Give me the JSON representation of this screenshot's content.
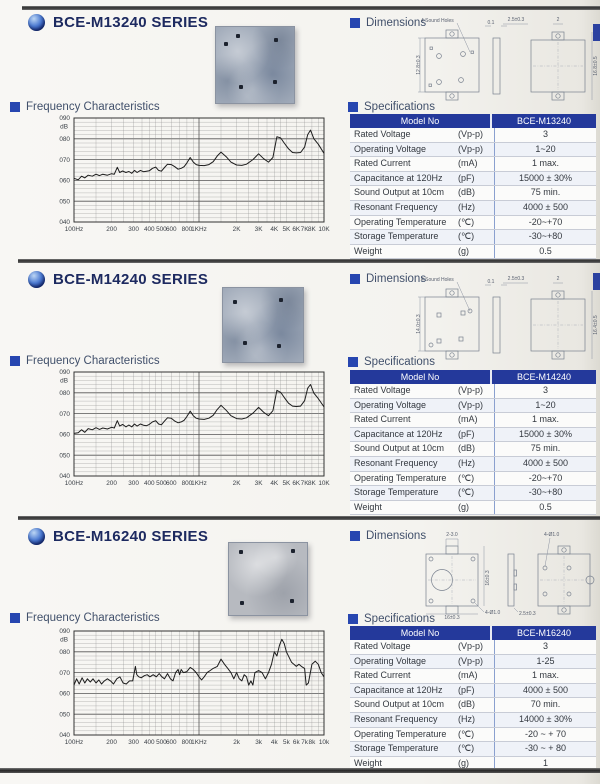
{
  "labels": {
    "dimensions": "Dimensions",
    "frequency": "Frequency Characteristics",
    "specifications": "Specifications"
  },
  "sections": [
    {
      "title": "BCE-M13240 SERIES",
      "dimensions": {
        "annotation": "4 Sound Holes",
        "d1": "0.1",
        "d2": "2.5±0.3",
        "d3": "2",
        "left": "12.8±0.3",
        "right": "16.8±0.5"
      },
      "specs": {
        "header": [
          "Model No",
          "BCE-M13240"
        ],
        "rows": [
          [
            "Rated Voltage",
            "(Vp-p)",
            "3"
          ],
          [
            "Operating Voltage",
            "(Vp-p)",
            "1~20"
          ],
          [
            "Rated Current",
            "(mA)",
            "1 max."
          ],
          [
            "Capacitance at 120Hz",
            "(pF)",
            "15000 ± 30%"
          ],
          [
            "Sound Output at 10cm",
            "(dB)",
            "75 min."
          ],
          [
            "Resonant Frequency",
            "(Hz)",
            "4000 ± 500"
          ],
          [
            "Operating Temperature",
            "(℃)",
            "-20~+70"
          ],
          [
            "Storage Temperature",
            "(℃)",
            "-30~+80"
          ],
          [
            "Weight",
            "(g)",
            "0.5"
          ]
        ]
      }
    },
    {
      "title": "BCE-M14240 SERIES",
      "dimensions": {
        "annotation": "4 Sound Holes",
        "d1": "0.1",
        "d2": "2.5±0.3",
        "d3": "2",
        "left": "14.0±0.3",
        "right": "16.4±0.5"
      },
      "specs": {
        "header": [
          "Model No",
          "BCE-M14240"
        ],
        "rows": [
          [
            "Rated Voltage",
            "(Vp-p)",
            "3"
          ],
          [
            "Operating Voltage",
            "(Vp-p)",
            "1~20"
          ],
          [
            "Rated Current",
            "(mA)",
            "1 max."
          ],
          [
            "Capacitance at 120Hz",
            "(pF)",
            "15000 ± 30%"
          ],
          [
            "Sound Output at 10cm",
            "(dB)",
            "75 min."
          ],
          [
            "Resonant Frequency",
            "(Hz)",
            "4000 ± 500"
          ],
          [
            "Operating Temperature",
            "(℃)",
            "-20~+70"
          ],
          [
            "Storage Temperature",
            "(℃)",
            "-30~+80"
          ],
          [
            "Weight",
            "(g)",
            "0.5"
          ]
        ]
      }
    },
    {
      "title": "BCE-M16240 SERIES",
      "dimensions": {
        "top": "2-3.0",
        "right": "16±0.3",
        "bottom": "16±0.3",
        "holes1": "4-Ø1.0",
        "holes2": "4-Ø1.0",
        "side": "2.5±0.3"
      },
      "specs": {
        "header": [
          "Model No",
          "BCE-M16240"
        ],
        "rows": [
          [
            "Rated Voltage",
            "(Vp-p)",
            "3"
          ],
          [
            "Operating Voltage",
            "(Vp-p)",
            "1-25"
          ],
          [
            "Rated Current",
            "(mA)",
            "1 max."
          ],
          [
            "Capacitance at 120Hz",
            "(pF)",
            "4000 ± 500"
          ],
          [
            "Sound Output at 10cm",
            "(dB)",
            "70 min."
          ],
          [
            "Resonant Frequency",
            "(Hz)",
            "14000 ± 30%"
          ],
          [
            "Operating Temperature",
            "(℃)",
            "-20 ~ + 70"
          ],
          [
            "Storage Temperature",
            "(℃)",
            "-30 ~ + 80"
          ],
          [
            "Weight",
            "(g)",
            "1"
          ]
        ]
      }
    }
  ],
  "chart_data": [
    {
      "type": "line",
      "title": "BCE-M13240 frequency characteristics",
      "xlabel": "Frequency",
      "ylabel": "dB",
      "xscale": "log",
      "xlim": [
        100,
        10000
      ],
      "ylim": [
        40,
        90
      ],
      "grid": true,
      "yticks": [
        [
          90,
          "090"
        ],
        [
          80,
          "080"
        ],
        [
          70,
          "070"
        ],
        [
          60,
          "060"
        ],
        [
          50,
          "050"
        ],
        [
          40,
          "040"
        ]
      ],
      "xticks": [
        [
          100,
          "100Hz"
        ],
        [
          200,
          "200"
        ],
        [
          300,
          "300"
        ],
        [
          400,
          "400"
        ],
        [
          500,
          "500"
        ],
        [
          600,
          "600"
        ],
        [
          800,
          "800"
        ],
        [
          1000,
          "1KHz"
        ],
        [
          2000,
          "2K"
        ],
        [
          3000,
          "3K"
        ],
        [
          4000,
          "4K"
        ],
        [
          5000,
          "5K"
        ],
        [
          6000,
          "6K"
        ],
        [
          7000,
          "7K"
        ],
        [
          8000,
          "8K"
        ],
        [
          10000,
          "10K"
        ]
      ],
      "x": [
        100,
        108,
        115,
        122,
        130,
        140,
        150,
        160,
        170,
        185,
        200,
        210,
        222,
        232,
        245,
        260,
        275,
        290,
        305,
        320,
        340,
        360,
        380,
        400,
        425,
        450,
        475,
        500,
        530,
        560,
        600,
        640,
        680,
        720,
        760,
        800,
        850,
        900,
        950,
        1000,
        1100,
        1200,
        1300,
        1400,
        1500,
        1650,
        1800,
        2000,
        2200,
        2400,
        2700,
        3000,
        3300,
        3600,
        3900,
        4200,
        4500,
        4800,
        5200,
        5600,
        6000,
        6500,
        7000,
        7400,
        7800,
        8300,
        9000,
        10000
      ],
      "y": [
        61,
        60.3,
        62,
        61.2,
        62.5,
        62,
        63,
        62.3,
        63,
        62.5,
        63.2,
        63,
        66.3,
        63.8,
        64.5,
        63.8,
        64.3,
        63.4,
        64.8,
        63.8,
        64.8,
        64.2,
        64.4,
        64.6,
        65.8,
        66.4,
        64.8,
        64.4,
        66.2,
        67.8,
        67.6,
        66.6,
        65.4,
        65.8,
        66.6,
        68.4,
        71,
        68.8,
        67.6,
        67.2,
        67.1,
        67.6,
        69,
        71.8,
        73.6,
        71.4,
        68.8,
        67.4,
        67.2,
        67.8,
        70,
        72.8,
        70.4,
        68.8,
        71,
        81,
        80.4,
        78,
        75.2,
        73.4,
        73.2,
        73.4,
        76,
        82,
        84.2,
        80,
        77.4,
        73
      ]
    },
    {
      "type": "line",
      "title": "BCE-M14240 frequency characteristics",
      "xlabel": "Frequency",
      "ylabel": "dB",
      "xscale": "log",
      "xlim": [
        100,
        10000
      ],
      "ylim": [
        40,
        90
      ],
      "grid": true,
      "yticks": [
        [
          90,
          "090"
        ],
        [
          80,
          "080"
        ],
        [
          70,
          "070"
        ],
        [
          60,
          "060"
        ],
        [
          50,
          "050"
        ],
        [
          40,
          "040"
        ]
      ],
      "xticks": [
        [
          100,
          "100Hz"
        ],
        [
          200,
          "200"
        ],
        [
          300,
          "300"
        ],
        [
          400,
          "400"
        ],
        [
          500,
          "500"
        ],
        [
          600,
          "600"
        ],
        [
          800,
          "800"
        ],
        [
          1000,
          "1KHz"
        ],
        [
          2000,
          "2K"
        ],
        [
          3000,
          "3K"
        ],
        [
          4000,
          "4K"
        ],
        [
          5000,
          "5K"
        ],
        [
          6000,
          "6K"
        ],
        [
          7000,
          "7K"
        ],
        [
          8000,
          "8K"
        ],
        [
          10000,
          "10K"
        ]
      ],
      "x": [
        100,
        108,
        115,
        122,
        130,
        140,
        150,
        160,
        170,
        185,
        200,
        210,
        222,
        232,
        245,
        260,
        275,
        290,
        305,
        320,
        340,
        360,
        380,
        400,
        425,
        450,
        475,
        500,
        530,
        560,
        600,
        640,
        680,
        720,
        760,
        800,
        850,
        900,
        950,
        1000,
        1100,
        1200,
        1300,
        1400,
        1500,
        1650,
        1800,
        2000,
        2200,
        2400,
        2700,
        3000,
        3300,
        3600,
        3900,
        4200,
        4500,
        4800,
        5200,
        5600,
        6000,
        6500,
        7000,
        7400,
        7800,
        8300,
        9000,
        10000
      ],
      "y": [
        60.5,
        60.8,
        62.2,
        61,
        62.8,
        62.2,
        63.2,
        62.4,
        63.1,
        62.6,
        63.4,
        63.1,
        66.6,
        64,
        64.8,
        63.6,
        64.5,
        63.6,
        65,
        64,
        65,
        64.4,
        64.2,
        64.8,
        66,
        66.6,
        65,
        64.6,
        66.4,
        68,
        67.8,
        66.4,
        65.6,
        66,
        66.8,
        68.6,
        71.2,
        69,
        67.8,
        67.4,
        67.2,
        67.8,
        69.2,
        72,
        74,
        71.6,
        69,
        67.6,
        67.4,
        68,
        70.2,
        73,
        70.6,
        69,
        71.4,
        81.2,
        80.2,
        77.8,
        75,
        73.6,
        73.4,
        73.6,
        76.2,
        82.2,
        84,
        79.8,
        77.2,
        73.2
      ]
    },
    {
      "type": "line",
      "title": "BCE-M16240 frequency characteristics",
      "xlabel": "Frequency",
      "ylabel": "dB",
      "xscale": "log",
      "xlim": [
        100,
        10000
      ],
      "ylim": [
        40,
        90
      ],
      "grid": true,
      "yticks": [
        [
          90,
          "090"
        ],
        [
          80,
          "080"
        ],
        [
          70,
          "070"
        ],
        [
          60,
          "060"
        ],
        [
          50,
          "050"
        ],
        [
          40,
          "040"
        ]
      ],
      "xticks": [
        [
          100,
          "100Hz"
        ],
        [
          200,
          "200"
        ],
        [
          300,
          "300"
        ],
        [
          400,
          "400"
        ],
        [
          500,
          "500"
        ],
        [
          600,
          "600"
        ],
        [
          800,
          "800"
        ],
        [
          1000,
          "1KHz"
        ],
        [
          2000,
          "2k"
        ],
        [
          3000,
          "3k"
        ],
        [
          4000,
          "4k"
        ],
        [
          5000,
          "5k"
        ],
        [
          6000,
          "6k"
        ],
        [
          7000,
          "7k"
        ],
        [
          8000,
          "8k"
        ],
        [
          10000,
          "10k"
        ]
      ],
      "x": [
        100,
        105,
        110,
        116,
        122,
        128,
        135,
        142,
        150,
        158,
        166,
        175,
        185,
        196,
        207,
        220,
        233,
        247,
        262,
        278,
        295,
        310,
        318,
        330,
        345,
        365,
        385,
        405,
        430,
        455,
        480,
        505,
        530,
        560,
        590,
        620,
        650,
        680,
        700,
        720,
        750,
        800,
        850,
        900,
        950,
        1000,
        1050,
        1100,
        1160,
        1230,
        1300,
        1400,
        1500,
        1600,
        1700,
        1800,
        1900,
        2000,
        2100,
        2200,
        2300,
        2400,
        2500,
        2600,
        2700,
        2800,
        3000,
        3200,
        3400,
        3600,
        3800,
        4000,
        4200,
        4400,
        4600,
        4800,
        5000,
        5500,
        6000,
        6300,
        6600,
        7000,
        7200,
        7500,
        8000,
        8500,
        9000,
        9500,
        10000
      ],
      "y": [
        64,
        67,
        64.5,
        67.5,
        65,
        67,
        65.5,
        67,
        65,
        66.5,
        64.5,
        66,
        67,
        66,
        64.5,
        67,
        68,
        65,
        64.5,
        66,
        66,
        73,
        69,
        68,
        67.5,
        68.5,
        69,
        68,
        69,
        68,
        69.5,
        68,
        67,
        69.5,
        67,
        66,
        70,
        71.5,
        69,
        71.5,
        70,
        70.5,
        72.5,
        71.5,
        70,
        68,
        66.5,
        68,
        70,
        71,
        72,
        73,
        76.5,
        74,
        72,
        70,
        67,
        70,
        67,
        66,
        69,
        68,
        64,
        66,
        64,
        70,
        71,
        70,
        67,
        70,
        74,
        80,
        78,
        83,
        86,
        84,
        80,
        75,
        73,
        74,
        73,
        72,
        64,
        65,
        74,
        75.5,
        74,
        70,
        68
      ]
    }
  ]
}
